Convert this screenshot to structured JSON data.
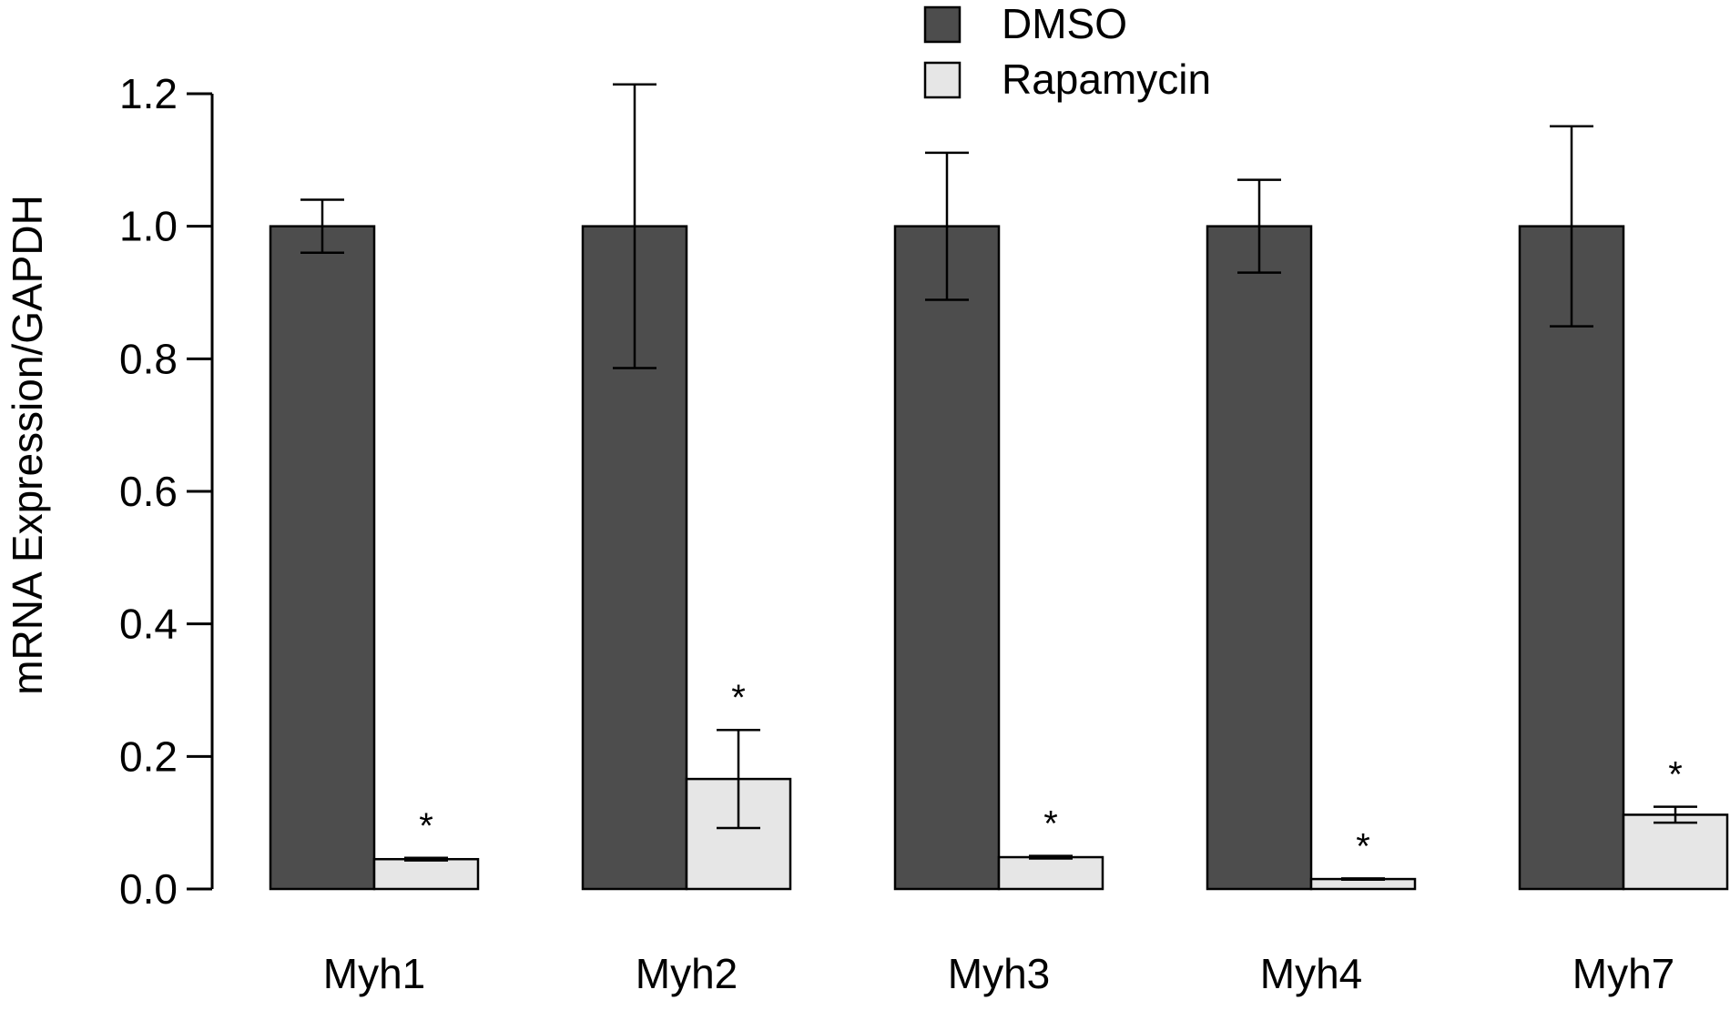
{
  "chart_data": {
    "type": "bar",
    "title": "",
    "xlabel": "",
    "ylabel": "mRNA Expression/GAPDH",
    "ylim": [
      0,
      1.2
    ],
    "yticks": [
      "0.0",
      "0.2",
      "0.4",
      "0.6",
      "0.8",
      "1.0",
      "1.2"
    ],
    "grid": false,
    "legend_position": "top-center",
    "categories": [
      "Myh1",
      "Myh2",
      "Myh3",
      "Myh4",
      "Myh7"
    ],
    "series": [
      {
        "name": "DMSO",
        "color": "#4d4d4d",
        "values": [
          1.0,
          1.0,
          1.0,
          1.0,
          1.0
        ],
        "error": [
          0.04,
          0.214,
          0.111,
          0.07,
          0.151
        ]
      },
      {
        "name": "Rapamycin",
        "color": "#e6e6e6",
        "values": [
          0.045,
          0.166,
          0.048,
          0.015,
          0.112
        ],
        "error": [
          0.002,
          0.074,
          0.002,
          0.001,
          0.012
        ]
      }
    ],
    "annotations": [
      {
        "category": "Myh1",
        "series": "Rapamycin",
        "text": "*"
      },
      {
        "category": "Myh2",
        "series": "Rapamycin",
        "text": "*"
      },
      {
        "category": "Myh3",
        "series": "Rapamycin",
        "text": "*"
      },
      {
        "category": "Myh4",
        "series": "Rapamycin",
        "text": "*"
      },
      {
        "category": "Myh7",
        "series": "Rapamycin",
        "text": "*"
      }
    ]
  }
}
